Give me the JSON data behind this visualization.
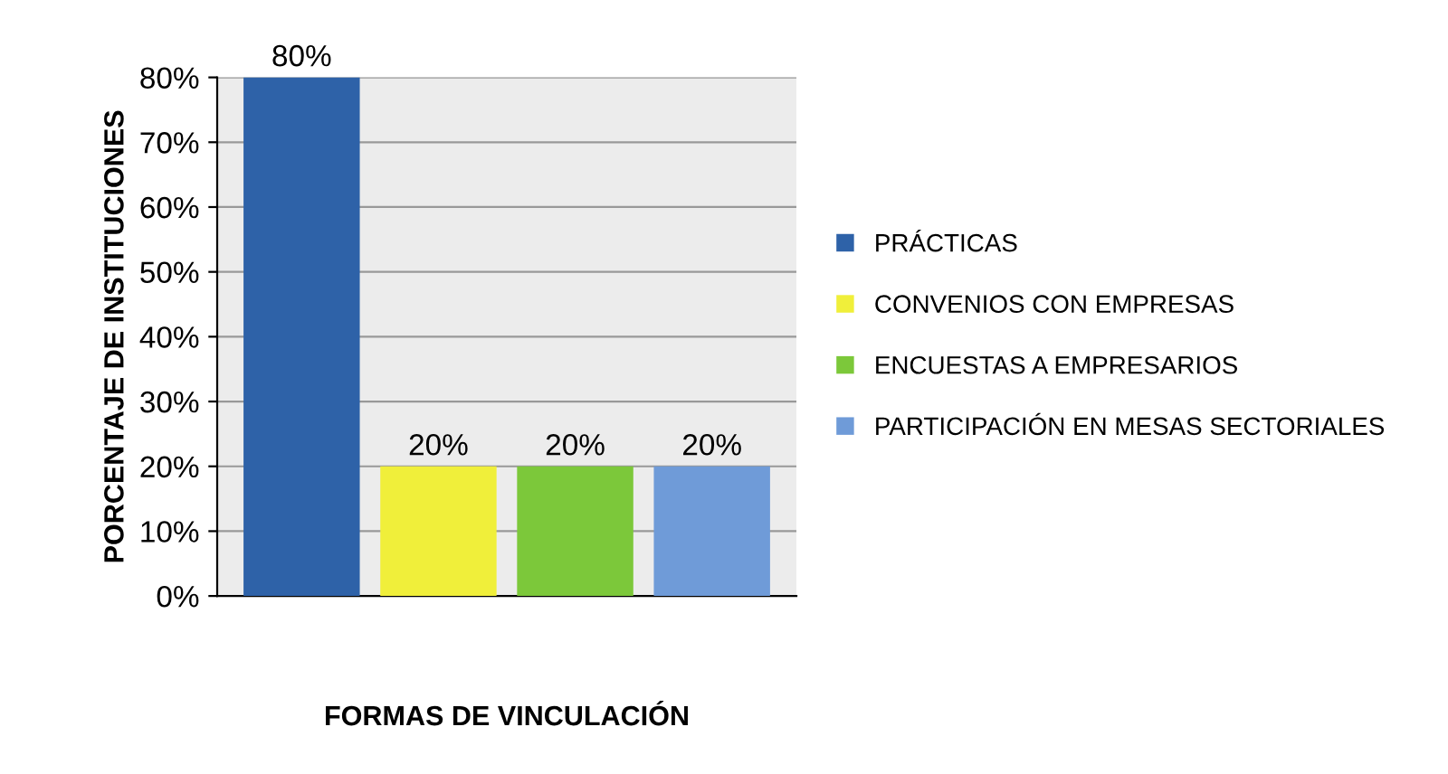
{
  "chart_data": {
    "type": "bar",
    "xlabel": "FORMAS DE VINCULACIÓN",
    "ylabel": "PORCENTAJE DE INSTITUCIONES",
    "categories": [
      null
    ],
    "series": [
      {
        "name": "PRÁCTICAS",
        "color": "#2e62a8",
        "values": [
          80
        ],
        "value_labels": [
          "80%"
        ]
      },
      {
        "name": "CONVENIOS CON EMPRESAS",
        "color": "#f0ef3a",
        "values": [
          20
        ],
        "value_labels": [
          "20%"
        ]
      },
      {
        "name": "ENCUESTAS A EMPRESARIOS",
        "color": "#7cc83a",
        "values": [
          20
        ],
        "value_labels": [
          "20%"
        ]
      },
      {
        "name": "PARTICIPACIÓN EN MESAS SECTORIALES",
        "color": "#6f9bd8",
        "values": [
          20
        ],
        "value_labels": [
          "20%"
        ]
      }
    ],
    "ylim": [
      0,
      80
    ],
    "yticks": [
      {
        "value": 0,
        "label": "0%"
      },
      {
        "value": 10,
        "label": "10%"
      },
      {
        "value": 20,
        "label": "20%"
      },
      {
        "value": 30,
        "label": "30%"
      },
      {
        "value": 40,
        "label": "40%"
      },
      {
        "value": 50,
        "label": "50%"
      },
      {
        "value": 60,
        "label": "60%"
      },
      {
        "value": 70,
        "label": "70%"
      },
      {
        "value": 80,
        "label": "80%"
      }
    ],
    "grid": "y",
    "legend": "right"
  }
}
